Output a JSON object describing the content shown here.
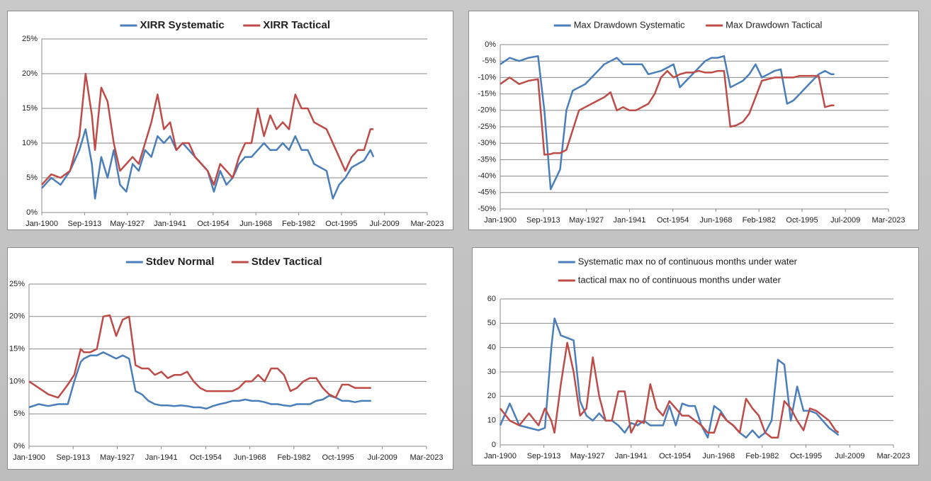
{
  "chart_data": [
    {
      "type": "line",
      "legend": "top",
      "grid": true,
      "x": [
        "1900-01",
        "1903-01",
        "1906-01",
        "1909-01",
        "1912-01",
        "1914-01",
        "1916-01",
        "1917-01",
        "1919-01",
        "1921-01",
        "1923-01",
        "1925-01",
        "1927-01",
        "1929-01",
        "1931-01",
        "1933-01",
        "1935-01",
        "1937-01",
        "1939-01",
        "1941-01",
        "1943-01",
        "1945-01",
        "1947-01",
        "1949-01",
        "1951-01",
        "1953-01",
        "1955-01",
        "1957-01",
        "1959-01",
        "1961-01",
        "1963-01",
        "1965-01",
        "1967-01",
        "1969-01",
        "1971-01",
        "1973-01",
        "1975-01",
        "1977-01",
        "1979-01",
        "1981-01",
        "1983-01",
        "1985-01",
        "1987-01",
        "1989-01",
        "1991-01",
        "1993-01",
        "1995-01",
        "1997-01",
        "1999-01",
        "2001-01",
        "2003-01",
        "2005-01",
        "2006-01"
      ],
      "series": [
        {
          "name": "XIRR Systematic",
          "color": "#4a7ebb",
          "values": [
            3.5,
            5,
            4,
            6,
            9,
            12,
            7,
            2,
            8,
            5,
            9,
            4,
            3,
            7,
            6,
            9,
            8,
            11,
            10,
            11,
            9,
            10,
            9,
            8,
            7,
            6,
            3,
            6,
            4,
            5,
            7,
            8,
            8,
            9,
            10,
            9,
            9,
            10,
            9,
            11,
            9,
            9,
            7,
            6.5,
            6,
            2,
            4,
            5,
            6.5,
            7,
            7.5,
            9,
            8
          ]
        },
        {
          "name": "XIRR Tactical",
          "color": "#be4b48",
          "values": [
            4,
            5.5,
            5,
            6,
            11,
            20,
            14,
            9,
            18,
            16,
            10,
            6,
            7,
            8,
            7,
            10,
            13,
            17,
            12,
            13,
            9,
            10,
            10,
            8,
            7,
            6,
            4,
            7,
            6,
            5,
            8,
            10,
            10,
            15,
            11,
            14,
            12,
            13,
            12,
            17,
            15,
            15,
            13,
            12.5,
            12,
            10,
            8,
            6,
            8,
            9,
            9,
            12,
            12
          ]
        }
      ],
      "xlim": [
        "1900-01",
        "2023-03"
      ],
      "xticks": [
        {
          "value": "1900-01",
          "label": "Jan-1900"
        },
        {
          "value": "1913-09",
          "label": "Sep-1913"
        },
        {
          "value": "1927-05",
          "label": "May-1927"
        },
        {
          "value": "1941-01",
          "label": "Jan-1941"
        },
        {
          "value": "1954-10",
          "label": "Oct-1954"
        },
        {
          "value": "1968-06",
          "label": "Jun-1968"
        },
        {
          "value": "1982-02",
          "label": "Feb-1982"
        },
        {
          "value": "1995-10",
          "label": "Oct-1995"
        },
        {
          "value": "2009-07",
          "label": "Jul-2009"
        },
        {
          "value": "2023-03",
          "label": "Mar-2023"
        }
      ],
      "ylim": [
        0,
        25
      ],
      "yticks": [
        {
          "value": 0,
          "label": "0%"
        },
        {
          "value": 5,
          "label": "5%"
        },
        {
          "value": 10,
          "label": "10%"
        },
        {
          "value": 15,
          "label": "15%"
        },
        {
          "value": 20,
          "label": "20%"
        },
        {
          "value": 25,
          "label": "25%"
        }
      ]
    },
    {
      "type": "line",
      "legend": "top",
      "grid": true,
      "x": [
        "1900-01",
        "1903-01",
        "1906-01",
        "1909-01",
        "1912-01",
        "1914-01",
        "1916-01",
        "1917-01",
        "1919-01",
        "1921-01",
        "1923-01",
        "1925-01",
        "1927-01",
        "1929-01",
        "1931-01",
        "1933-01",
        "1935-01",
        "1937-01",
        "1939-01",
        "1941-01",
        "1943-01",
        "1945-01",
        "1947-01",
        "1949-01",
        "1951-01",
        "1953-01",
        "1955-01",
        "1957-01",
        "1959-01",
        "1961-01",
        "1963-01",
        "1965-01",
        "1967-01",
        "1969-01",
        "1971-01",
        "1973-01",
        "1975-01",
        "1977-01",
        "1979-01",
        "1981-01",
        "1983-01",
        "1985-01",
        "1987-01",
        "1989-01",
        "1991-01",
        "1993-01",
        "1995-01",
        "1997-01",
        "1999-01",
        "2001-01",
        "2003-01",
        "2005-01",
        "2006-01"
      ],
      "series": [
        {
          "name": "Max Drawdown Systematic",
          "color": "#4a7ebb",
          "values": [
            -6,
            -4,
            -5,
            -4,
            -3.5,
            -20,
            -44,
            -42,
            -38,
            -20,
            -14,
            -13,
            -12,
            -10,
            -8,
            -6,
            -5,
            -4,
            -6,
            -6,
            -6,
            -6,
            -9,
            -8.5,
            -8,
            -7,
            -6,
            -13,
            -11,
            -9,
            -7,
            -5,
            -4,
            -4,
            -3.5,
            -13,
            -12,
            -11,
            -9,
            -6,
            -10,
            -9,
            -8,
            -7.5,
            -18,
            -17,
            -15,
            -13,
            -11,
            -9,
            -8,
            -9,
            -9
          ]
        },
        {
          "name": "Max Drawdown Tactical",
          "color": "#be4b48",
          "values": [
            -12,
            -10,
            -12,
            -11,
            -10.5,
            -33.5,
            -33.3,
            -33,
            -33,
            -32,
            -26,
            -20,
            -19,
            -18,
            -17,
            -16,
            -14.5,
            -20,
            -19,
            -20,
            -20,
            -19,
            -18,
            -15,
            -10,
            -8,
            -10,
            -9,
            -8.5,
            -8.5,
            -8,
            -8.5,
            -8.5,
            -8,
            -8,
            -25,
            -24.5,
            -23.5,
            -21,
            -16,
            -11,
            -10.5,
            -10,
            -10,
            -10,
            -10,
            -9.5,
            -9.5,
            -9.5,
            -9.5,
            -19,
            -18.5,
            -18.5
          ]
        }
      ],
      "xlim": [
        "1900-01",
        "2023-03"
      ],
      "xticks": [
        {
          "value": "1900-01",
          "label": "Jan-1900"
        },
        {
          "value": "1913-09",
          "label": "Sep-1913"
        },
        {
          "value": "1927-05",
          "label": "May-1927"
        },
        {
          "value": "1941-01",
          "label": "Jan-1941"
        },
        {
          "value": "1954-10",
          "label": "Oct-1954"
        },
        {
          "value": "1968-06",
          "label": "Jun-1968"
        },
        {
          "value": "1982-02",
          "label": "Feb-1982"
        },
        {
          "value": "1995-10",
          "label": "Oct-1995"
        },
        {
          "value": "2009-07",
          "label": "Jul-2009"
        },
        {
          "value": "2023-03",
          "label": "Mar-2023"
        }
      ],
      "ylim": [
        -50,
        0
      ],
      "yticks": [
        {
          "value": 0,
          "label": "0%"
        },
        {
          "value": -5,
          "label": "-5%"
        },
        {
          "value": -10,
          "label": "-10%"
        },
        {
          "value": -15,
          "label": "-15%"
        },
        {
          "value": -20,
          "label": "-20%"
        },
        {
          "value": -25,
          "label": "-25%"
        },
        {
          "value": -30,
          "label": "-30%"
        },
        {
          "value": -35,
          "label": "-35%"
        },
        {
          "value": -40,
          "label": "-40%"
        },
        {
          "value": -45,
          "label": "-45%"
        },
        {
          "value": -50,
          "label": "-50%"
        }
      ]
    },
    {
      "type": "line",
      "legend": "top",
      "grid": true,
      "x": [
        "1900-01",
        "1903-01",
        "1906-01",
        "1909-01",
        "1912-01",
        "1914-01",
        "1916-01",
        "1917-01",
        "1919-01",
        "1921-01",
        "1923-01",
        "1925-01",
        "1927-01",
        "1929-01",
        "1931-01",
        "1933-01",
        "1935-01",
        "1937-01",
        "1939-01",
        "1941-01",
        "1943-01",
        "1945-01",
        "1947-01",
        "1949-01",
        "1951-01",
        "1953-01",
        "1955-01",
        "1957-01",
        "1959-01",
        "1961-01",
        "1963-01",
        "1965-01",
        "1967-01",
        "1969-01",
        "1971-01",
        "1973-01",
        "1975-01",
        "1977-01",
        "1979-01",
        "1981-01",
        "1983-01",
        "1985-01",
        "1987-01",
        "1989-01",
        "1991-01",
        "1993-01",
        "1995-01",
        "1997-01",
        "1999-01",
        "2001-01",
        "2003-01",
        "2005-01",
        "2006-01"
      ],
      "series": [
        {
          "name": "Stdev Normal",
          "color": "#4a7ebb",
          "values": [
            6,
            6.5,
            6.2,
            6.5,
            6.5,
            10,
            13,
            13.5,
            14,
            14,
            14.5,
            14,
            13.5,
            14,
            13.5,
            8.5,
            8,
            7,
            6.5,
            6.3,
            6.3,
            6.2,
            6.3,
            6.2,
            6,
            6,
            5.8,
            6.2,
            6.5,
            6.7,
            7,
            7,
            7.2,
            7,
            7,
            6.8,
            6.5,
            6.5,
            6.3,
            6.2,
            6.5,
            6.5,
            6.5,
            7,
            7.2,
            7.8,
            7.5,
            7,
            7,
            6.8,
            7,
            7,
            7
          ]
        },
        {
          "name": "Stdev Tactical",
          "color": "#be4b48",
          "values": [
            10,
            9,
            8,
            7.5,
            9.5,
            11,
            15,
            14.5,
            14.5,
            15,
            20,
            20.2,
            17,
            19.5,
            20,
            12.5,
            12,
            12,
            11,
            11.5,
            10.5,
            11,
            11,
            11.5,
            10,
            9,
            8.5,
            8.5,
            8.5,
            8.5,
            8.5,
            9,
            10,
            10,
            11,
            10,
            12,
            12,
            11,
            8.5,
            9,
            10,
            10.5,
            10.5,
            9,
            8,
            7.5,
            9.5,
            9.5,
            9,
            9,
            9,
            9
          ]
        }
      ],
      "xlim": [
        "1900-01",
        "2023-03"
      ],
      "xticks": [
        {
          "value": "1900-01",
          "label": "Jan-1900"
        },
        {
          "value": "1913-09",
          "label": "Sep-1913"
        },
        {
          "value": "1927-05",
          "label": "May-1927"
        },
        {
          "value": "1941-01",
          "label": "Jan-1941"
        },
        {
          "value": "1954-10",
          "label": "Oct-1954"
        },
        {
          "value": "1968-06",
          "label": "Jun-1968"
        },
        {
          "value": "1982-02",
          "label": "Feb-1982"
        },
        {
          "value": "1995-10",
          "label": "Oct-1995"
        },
        {
          "value": "2009-07",
          "label": "Jul-2009"
        },
        {
          "value": "2023-03",
          "label": "Mar-2023"
        }
      ],
      "ylim": [
        0,
        25
      ],
      "yticks": [
        {
          "value": 0,
          "label": "0%"
        },
        {
          "value": 5,
          "label": "5%"
        },
        {
          "value": 10,
          "label": "10%"
        },
        {
          "value": 15,
          "label": "15%"
        },
        {
          "value": 20,
          "label": "20%"
        },
        {
          "value": 25,
          "label": "25%"
        }
      ]
    },
    {
      "type": "line",
      "legend": "top",
      "grid": true,
      "x": [
        "1900-01",
        "1903-01",
        "1906-01",
        "1909-01",
        "1912-01",
        "1914-01",
        "1916-01",
        "1917-01",
        "1919-01",
        "1921-01",
        "1923-01",
        "1925-01",
        "1927-01",
        "1929-01",
        "1931-01",
        "1933-01",
        "1935-01",
        "1937-01",
        "1939-01",
        "1941-01",
        "1943-01",
        "1945-01",
        "1947-01",
        "1949-01",
        "1951-01",
        "1953-01",
        "1955-01",
        "1957-01",
        "1959-01",
        "1961-01",
        "1963-01",
        "1965-01",
        "1967-01",
        "1969-01",
        "1971-01",
        "1973-01",
        "1975-01",
        "1977-01",
        "1979-01",
        "1981-01",
        "1983-01",
        "1985-01",
        "1987-01",
        "1989-01",
        "1991-01",
        "1993-01",
        "1995-01",
        "1997-01",
        "1999-01",
        "2001-01",
        "2003-01",
        "2005-01",
        "2006-01"
      ],
      "series": [
        {
          "name": "Systematic max no of continuous months under water",
          "color": "#4a7ebb",
          "values": [
            8,
            17,
            8,
            7,
            6,
            7,
            40,
            52,
            45,
            44,
            43,
            18,
            12,
            10,
            13,
            10,
            10,
            8,
            5,
            9,
            8,
            10,
            8,
            8,
            8,
            16,
            8,
            17,
            16,
            16,
            8,
            3,
            16,
            14,
            10,
            8,
            5,
            3,
            6,
            3,
            5,
            10,
            35,
            33,
            10,
            24,
            14,
            14,
            13,
            10,
            7,
            5,
            4
          ]
        },
        {
          "name": "tactical max no of continuous months under water",
          "color": "#be4b48",
          "values": [
            15,
            10,
            8,
            13,
            8,
            15,
            10,
            5,
            25,
            42,
            30,
            12,
            15,
            36,
            20,
            10,
            10,
            22,
            22,
            5,
            10,
            9,
            25,
            15,
            12,
            18,
            15,
            12,
            12,
            10,
            8,
            5,
            5,
            13,
            10,
            8,
            5,
            19,
            15,
            12,
            5,
            3,
            3,
            18,
            15,
            10,
            6,
            15,
            14,
            12,
            10,
            6,
            5
          ]
        }
      ],
      "xlim": [
        "1900-01",
        "2023-03"
      ],
      "xticks": [
        {
          "value": "1900-01",
          "label": "Jan-1900"
        },
        {
          "value": "1913-09",
          "label": "Sep-1913"
        },
        {
          "value": "1927-05",
          "label": "May-1927"
        },
        {
          "value": "1941-01",
          "label": "Jan-1941"
        },
        {
          "value": "1954-10",
          "label": "Oct-1954"
        },
        {
          "value": "1968-06",
          "label": "Jun-1968"
        },
        {
          "value": "1982-02",
          "label": "Feb-1982"
        },
        {
          "value": "1995-10",
          "label": "Oct-1995"
        },
        {
          "value": "2009-07",
          "label": "Jul-2009"
        },
        {
          "value": "2023-03",
          "label": "Mar-2023"
        }
      ],
      "ylim": [
        0,
        60
      ],
      "yticks": [
        0,
        10,
        20,
        30,
        40,
        50,
        60
      ]
    }
  ]
}
